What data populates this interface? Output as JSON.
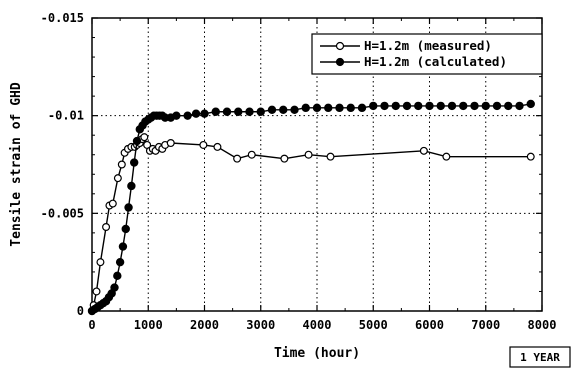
{
  "chart_data": {
    "type": "line",
    "xlabel": "Time (hour)",
    "ylabel": "Tensile strain of GHD",
    "xlim": [
      0,
      8000
    ],
    "ylim": [
      0,
      -0.015
    ],
    "x_ticks": [
      0,
      1000,
      2000,
      3000,
      4000,
      5000,
      6000,
      7000,
      8000
    ],
    "x_tick_labels": [
      "0",
      "1000",
      "2000",
      "3000",
      "4000",
      "5000",
      "6000",
      "7000",
      "8000"
    ],
    "y_ticks": [
      0,
      -0.005,
      -0.01,
      -0.015
    ],
    "y_tick_labels": [
      "0",
      "-0.005",
      "-0.01",
      "-0.015"
    ],
    "grid": "dotted",
    "legend_position": "top-right",
    "badge": "1 YEAR",
    "series": [
      {
        "name": "H=1.2m (measured)",
        "marker": "open-circle",
        "x": [
          0,
          30,
          80,
          150,
          250,
          310,
          370,
          460,
          530,
          580,
          640,
          700,
          760,
          800,
          850,
          890,
          930,
          980,
          1030,
          1080,
          1130,
          1190,
          1250,
          1300,
          1400,
          1980,
          2230,
          2580,
          2840,
          3420,
          3850,
          4240,
          5900,
          6300,
          7800
        ],
        "y": [
          0,
          -0.0003,
          -0.001,
          -0.0025,
          -0.0043,
          -0.0054,
          -0.0055,
          -0.0068,
          -0.0075,
          -0.0081,
          -0.0083,
          -0.0084,
          -0.0084,
          -0.0085,
          -0.0086,
          -0.0088,
          -0.0089,
          -0.0085,
          -0.0082,
          -0.0083,
          -0.0082,
          -0.0084,
          -0.0083,
          -0.0085,
          -0.0086,
          -0.0085,
          -0.0084,
          -0.0078,
          -0.008,
          -0.0078,
          -0.008,
          -0.0079,
          -0.0082,
          -0.0079,
          -0.0079
        ]
      },
      {
        "name": "H=1.2m (calculated)",
        "marker": "filled-circle",
        "x": [
          0,
          50,
          100,
          150,
          200,
          250,
          300,
          350,
          400,
          450,
          500,
          550,
          600,
          650,
          700,
          750,
          800,
          850,
          900,
          950,
          1000,
          1050,
          1100,
          1150,
          1200,
          1250,
          1300,
          1400,
          1500,
          1700,
          1850,
          2000,
          2200,
          2400,
          2600,
          2800,
          3000,
          3200,
          3400,
          3600,
          3800,
          4000,
          4200,
          4400,
          4600,
          4800,
          5000,
          5200,
          5400,
          5600,
          5800,
          6000,
          6200,
          6400,
          6600,
          6800,
          7000,
          7200,
          7400,
          7600,
          7800
        ],
        "y": [
          0,
          -0.0001,
          -0.0002,
          -0.0003,
          -0.0004,
          -0.0005,
          -0.0007,
          -0.0009,
          -0.0012,
          -0.0018,
          -0.0025,
          -0.0033,
          -0.0042,
          -0.0053,
          -0.0064,
          -0.0076,
          -0.0087,
          -0.0093,
          -0.0095,
          -0.0097,
          -0.0098,
          -0.0099,
          -0.01,
          -0.01,
          -0.01,
          -0.01,
          -0.0099,
          -0.0099,
          -0.01,
          -0.01,
          -0.0101,
          -0.0101,
          -0.0102,
          -0.0102,
          -0.0102,
          -0.0102,
          -0.0102,
          -0.0103,
          -0.0103,
          -0.0103,
          -0.0104,
          -0.0104,
          -0.0104,
          -0.0104,
          -0.0104,
          -0.0104,
          -0.0105,
          -0.0105,
          -0.0105,
          -0.0105,
          -0.0105,
          -0.0105,
          -0.0105,
          -0.0105,
          -0.0105,
          -0.0105,
          -0.0105,
          -0.0105,
          -0.0105,
          -0.0105,
          -0.0106
        ]
      }
    ]
  }
}
